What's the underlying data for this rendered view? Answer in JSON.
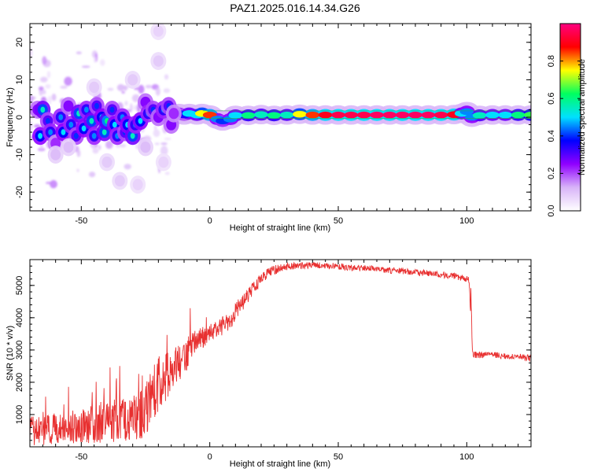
{
  "title": "PAZ1.2025.016.14.34.G26",
  "chart_data": [
    {
      "type": "heatmap",
      "xlabel": "Height of straight line (km)",
      "ylabel": "Frequency (Hz)",
      "xlim": [
        -70,
        125
      ],
      "ylim": [
        -25,
        25
      ],
      "xticks": [
        -50,
        0,
        50,
        100
      ],
      "yticks": [
        -20,
        -10,
        0,
        10,
        20
      ],
      "xtick_labels": [
        "-50",
        "0",
        "50",
        "100"
      ],
      "ytick_labels": [
        "-20",
        "-10",
        "0",
        "10",
        "20"
      ],
      "colorbar": {
        "label": "Normalized spectral amplitude",
        "range": [
          0,
          1
        ],
        "ticks": [
          "0.0",
          "0.2",
          "0.4",
          "0.6",
          "0.8"
        ],
        "tick_values": [
          0,
          0.2,
          0.4,
          0.6,
          0.8
        ],
        "colors": [
          "#ffffff",
          "#d8b4f8",
          "#9000ff",
          "#0000ff",
          "#00e0ff",
          "#00ff60",
          "#ffff00",
          "#ff0000",
          "#ff0080"
        ]
      },
      "scattered_region": {
        "x": [
          -70,
          -15
        ],
        "frequency_spread": [
          -18,
          23
        ]
      },
      "blobs": [
        [
          -67,
          2,
          0.35
        ],
        [
          -66,
          -5,
          0.5
        ],
        [
          -65,
          2,
          0.55
        ],
        [
          -63,
          -1,
          0.4
        ],
        [
          -62,
          -4,
          0.45
        ],
        [
          -60,
          -7,
          0.3
        ],
        [
          -58,
          0,
          0.45
        ],
        [
          -57,
          -4,
          0.5
        ],
        [
          -55,
          3,
          0.35
        ],
        [
          -54,
          -2,
          0.45
        ],
        [
          -52,
          -5,
          0.4
        ],
        [
          -51,
          1,
          0.55
        ],
        [
          -49,
          -3,
          0.5
        ],
        [
          -48,
          2,
          0.45
        ],
        [
          -46,
          -1,
          0.55
        ],
        [
          -45,
          -5,
          0.45
        ],
        [
          -44,
          3,
          0.4
        ],
        [
          -42,
          0,
          0.5
        ],
        [
          -41,
          -4,
          0.55
        ],
        [
          -40,
          -1,
          0.6
        ],
        [
          -38,
          2,
          0.4
        ],
        [
          -37,
          -2,
          0.5
        ],
        [
          -36,
          -5,
          0.45
        ],
        [
          -34,
          0,
          0.45
        ],
        [
          -33,
          -4,
          0.4
        ],
        [
          -32,
          -2,
          0.5
        ],
        [
          -30,
          -5,
          0.55
        ],
        [
          -29,
          -2,
          0.45
        ],
        [
          -27,
          -1,
          0.5
        ],
        [
          -25,
          4,
          0.35
        ],
        [
          -24,
          1,
          0.45
        ],
        [
          -22,
          2,
          0.4
        ],
        [
          -20,
          0,
          0.35
        ],
        [
          -18,
          2,
          0.45
        ],
        [
          -16,
          3,
          0.4
        ],
        [
          -15,
          -2,
          0.35
        ],
        [
          -14,
          1,
          0.3
        ],
        [
          -60,
          -10,
          0.15
        ],
        [
          -40,
          -12,
          0.12
        ],
        [
          -35,
          -17,
          0.12
        ],
        [
          -30,
          10,
          0.12
        ],
        [
          -20,
          15,
          0.12
        ],
        [
          -20,
          23,
          0.1
        ],
        [
          -28,
          -18,
          0.1
        ],
        [
          -55,
          -8,
          0.15
        ],
        [
          -45,
          8,
          0.12
        ],
        [
          -18,
          -12,
          0.1
        ],
        [
          -25,
          -8,
          0.15
        ]
      ],
      "carrier_band": {
        "x": [
          -15,
          125
        ],
        "points": [
          [
            -15,
            1,
            0.35
          ],
          [
            -12,
            1,
            0.4
          ],
          [
            -10,
            0.6,
            0.35
          ],
          [
            -8,
            1,
            0.5
          ],
          [
            -5,
            0.6,
            0.5
          ],
          [
            -3,
            1,
            0.75
          ],
          [
            0,
            0.6,
            0.85
          ],
          [
            3,
            -0.5,
            0.45
          ],
          [
            5,
            -1,
            0.4
          ],
          [
            8,
            -0.5,
            0.45
          ],
          [
            10,
            0.5,
            0.5
          ],
          [
            15,
            0.5,
            0.6
          ],
          [
            20,
            0.7,
            0.55
          ],
          [
            25,
            0.5,
            0.6
          ],
          [
            30,
            0.6,
            0.55
          ],
          [
            35,
            0.8,
            0.75
          ],
          [
            40,
            0.6,
            0.85
          ],
          [
            45,
            0.6,
            0.9
          ],
          [
            50,
            0.6,
            0.95
          ],
          [
            55,
            0.6,
            0.95
          ],
          [
            60,
            0.6,
            0.95
          ],
          [
            65,
            0.6,
            0.97
          ],
          [
            70,
            0.6,
            0.97
          ],
          [
            75,
            0.6,
            0.97
          ],
          [
            80,
            0.6,
            0.97
          ],
          [
            85,
            0.6,
            0.97
          ],
          [
            90,
            0.6,
            0.95
          ],
          [
            95,
            0.7,
            0.9
          ],
          [
            98,
            1,
            0.5
          ],
          [
            100,
            1.5,
            0.45
          ],
          [
            102,
            0,
            0.45
          ],
          [
            105,
            0.5,
            0.55
          ],
          [
            110,
            0.6,
            0.5
          ],
          [
            115,
            0.6,
            0.5
          ],
          [
            120,
            0.6,
            0.6
          ],
          [
            125,
            0.6,
            0.65
          ]
        ]
      }
    },
    {
      "type": "line",
      "xlabel": "Height of straight line (km)",
      "ylabel": "SNR (10 * v/v)",
      "xlim": [
        -70,
        125
      ],
      "ylim": [
        0,
        5800
      ],
      "xticks": [
        -50,
        0,
        50,
        100
      ],
      "yticks": [
        1000,
        2000,
        3000,
        4000,
        5000
      ],
      "xtick_labels": [
        "-50",
        "0",
        "50",
        "100"
      ],
      "ytick_labels": [
        "1000",
        "2000",
        "3000",
        "4000",
        "5000"
      ],
      "color": "#e83030",
      "x": [
        -70,
        -65,
        -60,
        -55,
        -50,
        -45,
        -40,
        -35,
        -30,
        -26,
        -24,
        -22,
        -20,
        -18,
        -16,
        -14,
        -12,
        -10,
        -8,
        -6,
        -4,
        -2,
        0,
        2,
        4,
        6,
        8,
        10,
        12,
        14,
        16,
        18,
        20,
        22,
        24,
        26,
        28,
        30,
        32,
        34,
        36,
        38,
        40,
        42,
        44,
        46,
        48,
        50,
        55,
        60,
        65,
        70,
        75,
        80,
        85,
        90,
        95,
        100,
        101,
        102,
        103,
        105,
        110,
        115,
        120,
        125
      ],
      "y": [
        500,
        500,
        550,
        600,
        650,
        700,
        750,
        850,
        900,
        1000,
        1400,
        1700,
        1900,
        2000,
        2300,
        2400,
        2600,
        2700,
        3000,
        3200,
        3300,
        3400,
        3500,
        3650,
        3700,
        3800,
        3900,
        4200,
        4400,
        4600,
        4800,
        5000,
        5200,
        5350,
        5450,
        5500,
        5550,
        5580,
        5600,
        5620,
        5620,
        5620,
        5630,
        5620,
        5610,
        5600,
        5600,
        5580,
        5550,
        5530,
        5500,
        5470,
        5450,
        5400,
        5370,
        5330,
        5300,
        5200,
        5150,
        2900,
        2850,
        2850,
        2850,
        2800,
        2780,
        2750
      ],
      "noise_amplitude": [
        450,
        450,
        500,
        500,
        550,
        600,
        600,
        700,
        700,
        800,
        900,
        900,
        900,
        900,
        700,
        600,
        600,
        500,
        500,
        400,
        400,
        350,
        300,
        300,
        300,
        300,
        300,
        280,
        260,
        250,
        220,
        200,
        180,
        160,
        150,
        140,
        130,
        120,
        110,
        110,
        110,
        100,
        100,
        100,
        100,
        100,
        100,
        100,
        100,
        100,
        100,
        100,
        100,
        100,
        100,
        100,
        100,
        100,
        100,
        100,
        100,
        100,
        100,
        100,
        100,
        100
      ]
    }
  ]
}
